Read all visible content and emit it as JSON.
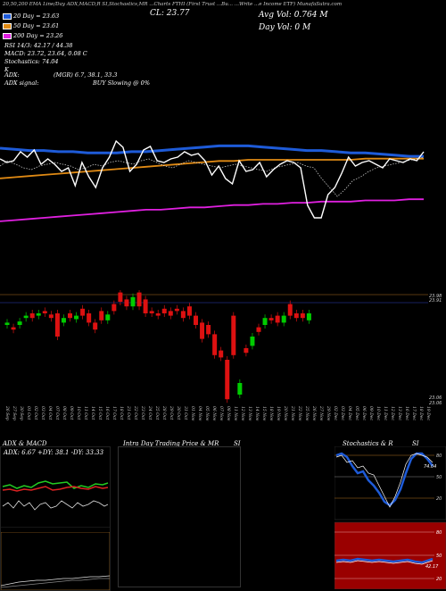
{
  "header": {
    "line1": "20,50,200 EMA Line/Day ADX,MACD,R   SI,Stochastics,MR   ...Charts FTHI   (First Trust   ...Bu...  ...Write   ...e Income ETF) MunafaSutra.com",
    "cl_label": "CL: 23.77",
    "avg_vol": "Avg Vol: 0.764  M",
    "day_vol": "Day Vol: 0   M"
  },
  "legend": {
    "ema20": "20 Day = 23.63",
    "ema50": "50 Day = 23.61",
    "ema200": "200 Day = 23.26",
    "rsi": "RSI 14/3: 42.17 / 44.38",
    "macd": "MACD: 23.72, 23.64, 0.08  C",
    "stoch_label": "Stochastics: 74.04",
    "stoch_k": "K",
    "adx_label": "ADX:",
    "adx_value": "(MGR) 6.7, 38.1, 33.3",
    "adx_signal_label": "ADX signal:",
    "adx_signal_value": "BUY Slowing @ 0%"
  },
  "colors": {
    "ema20": "#1e5bd8",
    "ema50": "#e08a14",
    "ema200": "#e020e0",
    "up": "#00cc00",
    "down": "#dd1111"
  },
  "price_axis": {
    "top_labels": [
      "23.98",
      "23.91"
    ],
    "bottom_labels": [
      "23.06",
      "23.06",
      "23.06"
    ]
  },
  "dates": [
    "26 Sep",
    "27 Sep",
    "30 Sep",
    "01 Oct",
    "02 Oct",
    "03 Oct",
    "04 Oct",
    "07 Oct",
    "08 Oct",
    "09 Oct",
    "10 Oct",
    "11 Oct",
    "14 Oct",
    "15 Oct",
    "16 Oct",
    "17 Oct",
    "18 Oct",
    "21 Oct",
    "22 Oct",
    "23 Oct",
    "24 Oct",
    "25 Oct",
    "28 Oct",
    "29 Oct",
    "30 Oct",
    "31 Oct",
    "01 Nov",
    "04 Nov",
    "05 Nov",
    "06 Nov",
    "07 Nov",
    "08 Nov",
    "11 Nov",
    "12 Nov",
    "13 Nov",
    "14 Nov",
    "15 Nov",
    "18 Nov",
    "19 Nov",
    "20 Nov",
    "21 Nov",
    "22 Nov",
    "25 Nov",
    "26 Nov",
    "27 Nov",
    "29 Nov",
    "02 Dec",
    "03 Dec",
    "04 Dec",
    "05 Dec",
    "06 Dec",
    "09 Dec",
    "10 Dec",
    "11 Dec",
    "12 Dec",
    "13 Dec",
    "16 Dec",
    "17 Dec",
    "18 Dec",
    "19 Dec"
  ],
  "panels": {
    "adx_title": "ADX  & MACD",
    "adx_values": "ADX: 6.67  +DY: 38.1  -DY: 33.33",
    "intraday_title": "Intra Day Trading Price  & MR",
    "intraday_si": "SI",
    "stoch_title": "Stochastics & R",
    "stoch_si": "SI",
    "stoch_axis": [
      "80",
      "50",
      "20"
    ],
    "rsi_axis": [
      "80",
      "50",
      "20"
    ],
    "stoch_reading": "74.04",
    "rsi_reading": "42.17"
  },
  "chart_data": {
    "type": "line",
    "series": [
      {
        "name": "20 Day",
        "values": [
          23.7,
          23.69,
          23.68,
          23.68,
          23.67,
          23.67,
          23.66,
          23.66,
          23.66,
          23.67,
          23.67,
          23.68,
          23.69,
          23.7,
          23.71,
          23.72,
          23.72,
          23.72,
          23.71,
          23.7,
          23.69,
          23.68,
          23.68,
          23.67,
          23.66,
          23.66,
          23.65,
          23.64,
          23.63,
          23.63
        ]
      },
      {
        "name": "50 Day",
        "values": [
          23.44,
          23.45,
          23.46,
          23.47,
          23.48,
          23.49,
          23.5,
          23.51,
          23.52,
          23.53,
          23.54,
          23.55,
          23.56,
          23.57,
          23.58,
          23.59,
          23.59,
          23.6,
          23.6,
          23.6,
          23.6,
          23.6,
          23.6,
          23.6,
          23.6,
          23.61,
          23.61,
          23.61,
          23.61,
          23.61
        ]
      },
      {
        "name": "200 Day",
        "values": [
          23.07,
          23.08,
          23.09,
          23.1,
          23.11,
          23.12,
          23.13,
          23.14,
          23.15,
          23.16,
          23.17,
          23.17,
          23.18,
          23.19,
          23.19,
          23.2,
          23.21,
          23.21,
          23.22,
          23.22,
          23.23,
          23.23,
          23.24,
          23.24,
          23.24,
          23.25,
          23.25,
          23.25,
          23.26,
          23.26
        ]
      }
    ],
    "candles": [
      {
        "o": 23.7,
        "c": 23.72
      },
      {
        "o": 23.68,
        "c": 23.66
      },
      {
        "o": 23.7,
        "c": 23.73
      },
      {
        "o": 23.76,
        "c": 23.78
      },
      {
        "o": 23.8,
        "c": 23.76
      },
      {
        "o": 23.78,
        "c": 23.8
      },
      {
        "o": 23.82,
        "c": 23.8
      },
      {
        "o": 23.79,
        "c": 23.76
      },
      {
        "o": 23.8,
        "c": 23.6
      },
      {
        "o": 23.72,
        "c": 23.76
      },
      {
        "o": 23.8,
        "c": 23.76
      },
      {
        "o": 23.75,
        "c": 23.78
      },
      {
        "o": 23.84,
        "c": 23.78
      },
      {
        "o": 23.8,
        "c": 23.72
      },
      {
        "o": 23.72,
        "c": 23.66
      },
      {
        "o": 23.82,
        "c": 23.74
      },
      {
        "o": 23.74,
        "c": 23.79
      },
      {
        "o": 23.88,
        "c": 23.82
      },
      {
        "o": 23.98,
        "c": 23.9
      },
      {
        "o": 23.92,
        "c": 23.86
      },
      {
        "o": 23.86,
        "c": 23.94
      },
      {
        "o": 23.98,
        "c": 23.86
      },
      {
        "o": 23.92,
        "c": 23.8
      },
      {
        "o": 23.82,
        "c": 23.8
      },
      {
        "o": 23.8,
        "c": 23.78
      },
      {
        "o": 23.84,
        "c": 23.8
      },
      {
        "o": 23.82,
        "c": 23.78
      },
      {
        "o": 23.84,
        "c": 23.82
      },
      {
        "o": 23.82,
        "c": 23.76
      },
      {
        "o": 23.86,
        "c": 23.78
      },
      {
        "o": 23.78,
        "c": 23.7
      },
      {
        "o": 23.72,
        "c": 23.58
      },
      {
        "o": 23.7,
        "c": 23.62
      },
      {
        "o": 23.62,
        "c": 23.44
      },
      {
        "o": 23.48,
        "c": 23.42
      },
      {
        "o": 23.4,
        "c": 23.06
      },
      {
        "o": 23.78,
        "c": 23.44
      },
      {
        "o": 23.1,
        "c": 23.2
      },
      {
        "o": 23.5,
        "c": 23.46
      },
      {
        "o": 23.52,
        "c": 23.6
      },
      {
        "o": 23.68,
        "c": 23.64
      },
      {
        "o": 23.7,
        "c": 23.76
      },
      {
        "o": 23.76,
        "c": 23.74
      },
      {
        "o": 23.78,
        "c": 23.72
      },
      {
        "o": 23.72,
        "c": 23.78
      },
      {
        "o": 23.88,
        "c": 23.78
      },
      {
        "o": 23.8,
        "c": 23.76
      },
      {
        "o": 23.8,
        "c": 23.76
      },
      {
        "o": 23.74,
        "c": 23.8
      }
    ]
  }
}
